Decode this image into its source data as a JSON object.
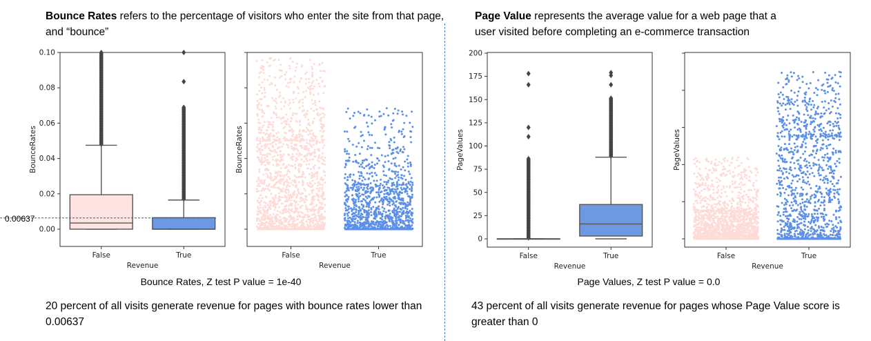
{
  "left": {
    "heading_bold": "Bounce Rates",
    "heading_rest": " refers to the percentage of visitors who enter the site from that page, and “bounce”",
    "caption": "Bounce Rates, Z test P value = 1e-40",
    "note": "20 percent of all visits generate revenue for pages with bounce rates lower than 0.00637",
    "threshold_label": "0.00637"
  },
  "right": {
    "heading_bold": "Page Value",
    "heading_rest": " represents the average value for a web page that a user visited before completing an e-commerce transaction",
    "caption": "Page Values, Z test P value = 0.0",
    "note": "43 percent of all visits generate revenue for pages whose Page Value score is greater than 0"
  },
  "colors": {
    "false_color": "#fde3e1",
    "true_color": "#6d99e2",
    "strip_false": "#fddcd8",
    "strip_true": "#5b8fe8",
    "box_edge": "#555555",
    "divider": "#4a78c2"
  },
  "chart_data": [
    {
      "type": "box",
      "xlabel": "Revenue",
      "ylabel": "BounceRates",
      "categories": [
        "False",
        "True"
      ],
      "ylim": [
        0,
        0.1
      ],
      "yticks": [
        "0.00",
        "0.02",
        "0.04",
        "0.06",
        "0.08",
        "0.10"
      ],
      "boxes": [
        {
          "name": "False",
          "whisker_low": 0,
          "q1": 0,
          "median": 0.0035,
          "q3": 0.0195,
          "whisker_high": 0.0475,
          "outliers_from": 0.048,
          "outliers_to": 0.1
        },
        {
          "name": "True",
          "whisker_low": 0,
          "q1": 0,
          "median": 0.0,
          "q3": 0.0065,
          "whisker_high": 0.0165,
          "outliers_from": 0.017,
          "outliers_to": 0.069,
          "extra_outliers": [
            0.0835,
            0.1
          ]
        }
      ],
      "reference_line": 0.00637
    },
    {
      "type": "scatter",
      "xlabel": "Revenue",
      "ylabel": "BounceRates",
      "categories": [
        "False",
        "True"
      ],
      "ylim": [
        0,
        0.1
      ],
      "strip": [
        {
          "name": "False",
          "max": 0.097,
          "dense_max": 0.05
        },
        {
          "name": "True",
          "max": 0.069,
          "dense_max": 0.025
        }
      ]
    },
    {
      "type": "box",
      "xlabel": "Revenue",
      "ylabel": "PageValues",
      "categories": [
        "False",
        "True"
      ],
      "ylim": [
        0,
        200
      ],
      "yticks": [
        "0",
        "25",
        "50",
        "75",
        "100",
        "125",
        "150",
        "175",
        "200"
      ],
      "boxes": [
        {
          "name": "False",
          "whisker_low": 0,
          "q1": 0,
          "median": 0,
          "q3": 0,
          "whisker_high": 0,
          "outliers_from": 1,
          "outliers_to": 87,
          "extra_outliers": [
            110,
            120,
            166,
            178
          ]
        },
        {
          "name": "True",
          "whisker_low": 0,
          "q1": 3,
          "median": 16,
          "q3": 37,
          "whisker_high": 88,
          "outliers_from": 89,
          "outliers_to": 152,
          "extra_outliers": [
            166,
            176,
            179
          ]
        }
      ]
    },
    {
      "type": "scatter",
      "xlabel": "Revenue",
      "ylabel": "PageValues",
      "categories": [
        "False",
        "True"
      ],
      "ylim": [
        0,
        200
      ],
      "strip": [
        {
          "name": "False",
          "max": 88,
          "dense_max": 30
        },
        {
          "name": "True",
          "max": 180,
          "dense_max": 110
        }
      ]
    }
  ]
}
